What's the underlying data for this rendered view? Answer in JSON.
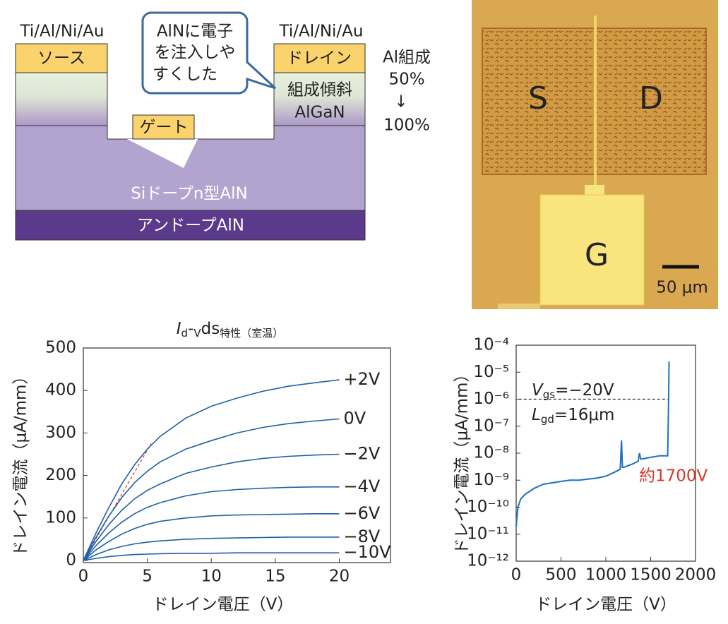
{
  "diagram": {
    "source_metal": "Ti/Al/Ni/Au",
    "drain_metal": "Ti/Al/Ni/Au",
    "source": "ソース",
    "drain": "ドレイン",
    "gate": "ゲート",
    "callout": [
      "AlNに電子",
      "を注入しや",
      "すくした"
    ],
    "graded_layer": [
      "組成傾斜",
      "AlGaN"
    ],
    "composition": [
      "Al組成",
      "50%",
      "↓",
      "100%"
    ],
    "channel_layer": "Siドープn型AlN",
    "buffer_layer": "アンドープAlN"
  },
  "micrograph": {
    "source": "S",
    "drain": "D",
    "gate": "G",
    "scale_bar": "50 μm"
  },
  "chart_data": [
    {
      "type": "line",
      "title": [
        "I",
        "d",
        "-",
        "V",
        "ds",
        "特性（室温）"
      ],
      "x_label": "ドレイン電圧（V）",
      "y_label": "ドレイン電流（μA/mm）",
      "xlim": [
        0,
        24
      ],
      "ylim": [
        -5,
        500
      ],
      "xticks": [
        0,
        5,
        10,
        15,
        20
      ],
      "yticks": [
        0,
        100,
        200,
        300,
        400,
        500
      ],
      "x": [
        0,
        1,
        2,
        3,
        4,
        5,
        6,
        8,
        10,
        12,
        14,
        16,
        18,
        20
      ],
      "series": [
        {
          "name": "+2V",
          "color": "#1f5fa8",
          "values": [
            0,
            65,
            125,
            180,
            225,
            262,
            292,
            335,
            363,
            382,
            398,
            410,
            418,
            425
          ]
        },
        {
          "name": "0V",
          "color": "#1f5fa8",
          "values": [
            0,
            55,
            105,
            148,
            183,
            210,
            232,
            262,
            282,
            300,
            313,
            322,
            328,
            333
          ]
        },
        {
          "name": "−2V",
          "color": "#1f5fa8",
          "values": [
            0,
            45,
            85,
            118,
            145,
            165,
            180,
            205,
            220,
            232,
            240,
            245,
            248,
            250
          ]
        },
        {
          "name": "−4V",
          "color": "#1f5fa8",
          "values": [
            0,
            35,
            65,
            90,
            110,
            125,
            136,
            152,
            162,
            167,
            170,
            172,
            173,
            173
          ]
        },
        {
          "name": "−6V",
          "color": "#1f5fa8",
          "values": [
            0,
            25,
            45,
            62,
            75,
            85,
            92,
            100,
            105,
            107,
            108,
            109,
            110,
            110
          ]
        },
        {
          "name": "−8V",
          "color": "#1f5fa8",
          "values": [
            0,
            14,
            25,
            33,
            39,
            43,
            46,
            50,
            52,
            53,
            54,
            55,
            55,
            55
          ]
        },
        {
          "name": "−10V",
          "color": "#1f5fa8",
          "values": [
            0,
            5,
            9,
            12,
            14,
            15,
            16,
            17,
            17,
            18,
            18,
            18,
            18,
            18
          ]
        }
      ],
      "guide": {
        "color": "#e0401e",
        "x": [
          0,
          5.3
        ],
        "values": [
          0,
          275
        ]
      }
    },
    {
      "type": "line",
      "log_scale": true,
      "x_label": "ドレイン電圧（V）",
      "y_label": "ドレイン電流（μA/mm）",
      "xlim": [
        0,
        2000
      ],
      "ylim": [
        1e-12,
        0.0001
      ],
      "xticks": [
        0,
        500,
        1000,
        1500,
        2000
      ],
      "yticks": [
        {
          "value": 1e-12,
          "label": "10⁻¹²"
        },
        {
          "value": 1e-11,
          "label": "10⁻¹¹"
        },
        {
          "value": 1e-10,
          "label": "10⁻¹⁰"
        },
        {
          "value": 1e-09,
          "label": "10⁻⁹"
        },
        {
          "value": 1e-08,
          "label": "10⁻⁸"
        },
        {
          "value": 1e-07,
          "label": "10⁻⁷"
        },
        {
          "value": 1e-06,
          "label": "10⁻⁶"
        },
        {
          "value": 1e-05,
          "label": "10⁻⁵"
        },
        {
          "value": 0.0001,
          "label": "10⁻⁴"
        }
      ],
      "x": [
        0,
        20,
        50,
        100,
        200,
        300,
        400,
        500,
        600,
        700,
        800,
        900,
        1000,
        1100,
        1160,
        1175,
        1185,
        1200,
        1300,
        1360,
        1375,
        1390,
        1500,
        1600,
        1690,
        1700,
        1705
      ],
      "series": [
        {
          "color": "#1f6fc0",
          "values": [
            2e-11,
            1e-10,
            2e-10,
            3e-10,
            5e-10,
            7e-10,
            8e-10,
            9e-10,
            1e-09,
            1e-09,
            1.1e-09,
            1.2e-09,
            1.4e-09,
            2e-09,
            2.5e-09,
            3e-08,
            3e-09,
            3e-09,
            4e-09,
            5e-09,
            1e-08,
            6e-09,
            7e-09,
            8e-09,
            8e-09,
            1e-06,
            2.5e-05
          ]
        }
      ],
      "guide": {
        "color": "#222222",
        "x": [
          30,
          1690
        ],
        "values": [
          1e-06,
          1e-06
        ]
      },
      "annotations": [
        [
          "V",
          "gs",
          "=−20V"
        ],
        [
          "L",
          "gd",
          "=16μm"
        ]
      ],
      "breakdown_label": {
        "text": "約1700V",
        "color": "#d03a2a"
      }
    }
  ]
}
